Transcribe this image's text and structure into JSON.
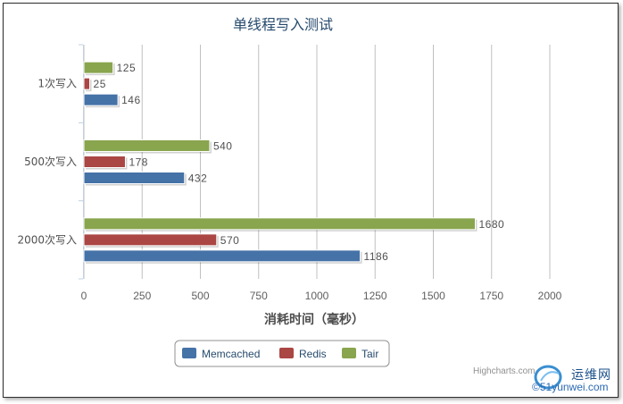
{
  "chart_data": {
    "type": "bar",
    "orientation": "horizontal",
    "title": "单线程写入测试",
    "xlabel": "消耗时间（毫秒）",
    "categories": [
      "1次写入",
      "500次写入",
      "2000次写入"
    ],
    "xlim": [
      0,
      2000
    ],
    "x_ticks": [
      "0",
      "250",
      "500",
      "750",
      "1000",
      "1250",
      "1500",
      "1750",
      "2000"
    ],
    "grid": true,
    "legend_position": "bottom-center",
    "series": [
      {
        "name": "Memcached",
        "color": "#4572A7",
        "values": [
          146,
          432,
          1186
        ]
      },
      {
        "name": "Redis",
        "color": "#AA4643",
        "values": [
          25,
          178,
          570
        ]
      },
      {
        "name": "Tair",
        "color": "#89A54E",
        "values": [
          125,
          540,
          1680
        ]
      }
    ]
  },
  "credit": "Highcharts.com",
  "watermark": {
    "line1": "运维网",
    "line2": "©51yunwei.com"
  }
}
